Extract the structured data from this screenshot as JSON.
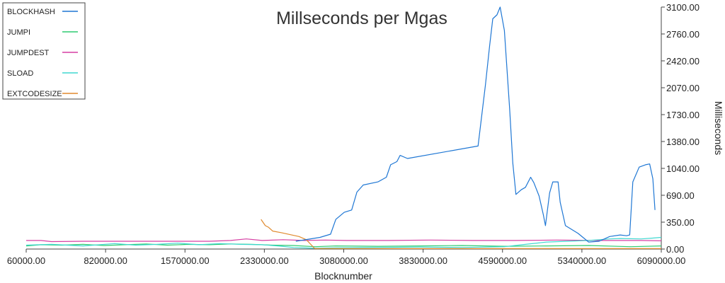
{
  "chart_data": {
    "type": "line",
    "title": "Millseconds per Mgas",
    "xlabel": "Blocknumber",
    "ylabel": "Milliseconds",
    "xlim": [
      60000,
      6090000
    ],
    "ylim": [
      0,
      3100
    ],
    "xticks": [
      "60000.00",
      "820000.00",
      "1570000.00",
      "2330000.00",
      "3080000.00",
      "3830000.00",
      "4590000.00",
      "5340000.00",
      "6090000.00"
    ],
    "yticks": [
      "0.00",
      "350.00",
      "690.00",
      "1040.00",
      "1380.00",
      "1730.00",
      "2070.00",
      "2420.00",
      "2760.00",
      "3100.00"
    ],
    "grid": false,
    "legend_position": "top-left",
    "series": [
      {
        "name": "BLOCKHASH",
        "color": "#1f77d4",
        "points": [
          [
            2620000,
            100
          ],
          [
            2850000,
            150
          ],
          [
            2950000,
            190
          ],
          [
            3000000,
            380
          ],
          [
            3080000,
            470
          ],
          [
            3150000,
            500
          ],
          [
            3200000,
            730
          ],
          [
            3260000,
            820
          ],
          [
            3400000,
            860
          ],
          [
            3480000,
            920
          ],
          [
            3520000,
            1080
          ],
          [
            3580000,
            1120
          ],
          [
            3610000,
            1200
          ],
          [
            3680000,
            1160
          ],
          [
            4350000,
            1320
          ],
          [
            4380000,
            1650
          ],
          [
            4420000,
            2100
          ],
          [
            4460000,
            2600
          ],
          [
            4490000,
            2950
          ],
          [
            4530000,
            3000
          ],
          [
            4560000,
            3100
          ],
          [
            4600000,
            2800
          ],
          [
            4650000,
            1800
          ],
          [
            4680000,
            1100
          ],
          [
            4710000,
            700
          ],
          [
            4760000,
            760
          ],
          [
            4800000,
            790
          ],
          [
            4850000,
            920
          ],
          [
            4880000,
            850
          ],
          [
            4930000,
            680
          ],
          [
            4970000,
            440
          ],
          [
            4990000,
            300
          ],
          [
            5030000,
            720
          ],
          [
            5060000,
            860
          ],
          [
            5110000,
            860
          ],
          [
            5130000,
            600
          ],
          [
            5180000,
            300
          ],
          [
            5300000,
            200
          ],
          [
            5400000,
            90
          ],
          [
            5500000,
            100
          ],
          [
            5600000,
            160
          ],
          [
            5700000,
            180
          ],
          [
            5760000,
            170
          ],
          [
            5790000,
            180
          ],
          [
            5820000,
            860
          ],
          [
            5880000,
            1050
          ],
          [
            5940000,
            1080
          ],
          [
            5980000,
            1090
          ],
          [
            6010000,
            900
          ],
          [
            6030000,
            500
          ]
        ]
      },
      {
        "name": "JUMPI",
        "color": "#2ecc71",
        "points": [
          [
            60000,
            40
          ],
          [
            200000,
            55
          ],
          [
            400000,
            50
          ],
          [
            600000,
            60
          ],
          [
            800000,
            45
          ],
          [
            1000000,
            55
          ],
          [
            1200000,
            65
          ],
          [
            1400000,
            50
          ],
          [
            1600000,
            60
          ],
          [
            1800000,
            55
          ],
          [
            2000000,
            65
          ],
          [
            2200000,
            60
          ],
          [
            2400000,
            50
          ],
          [
            2600000,
            45
          ],
          [
            2800000,
            30
          ],
          [
            3000000,
            40
          ],
          [
            3400000,
            35
          ],
          [
            3800000,
            40
          ],
          [
            4200000,
            45
          ],
          [
            4600000,
            35
          ],
          [
            5000000,
            40
          ],
          [
            5400000,
            45
          ],
          [
            5800000,
            30
          ],
          [
            6090000,
            40
          ]
        ]
      },
      {
        "name": "JUMPDEST",
        "color": "#d63fa3",
        "points": [
          [
            60000,
            110
          ],
          [
            200000,
            110
          ],
          [
            300000,
            95
          ],
          [
            600000,
            100
          ],
          [
            1000000,
            100
          ],
          [
            1400000,
            100
          ],
          [
            1800000,
            100
          ],
          [
            2000000,
            110
          ],
          [
            2150000,
            130
          ],
          [
            2300000,
            110
          ],
          [
            2500000,
            120
          ],
          [
            2700000,
            110
          ],
          [
            2900000,
            115
          ],
          [
            3100000,
            110
          ],
          [
            3500000,
            110
          ],
          [
            3900000,
            115
          ],
          [
            4300000,
            110
          ],
          [
            4700000,
            110
          ],
          [
            5100000,
            115
          ],
          [
            5500000,
            110
          ],
          [
            5900000,
            110
          ],
          [
            6090000,
            105
          ]
        ]
      },
      {
        "name": "SLOAD",
        "color": "#40d8d0",
        "points": [
          [
            60000,
            50
          ],
          [
            300000,
            60
          ],
          [
            600000,
            40
          ],
          [
            900000,
            70
          ],
          [
            1100000,
            50
          ],
          [
            1300000,
            60
          ],
          [
            1500000,
            75
          ],
          [
            1700000,
            55
          ],
          [
            1900000,
            70
          ],
          [
            2100000,
            60
          ],
          [
            2300000,
            55
          ],
          [
            2450000,
            40
          ],
          [
            2600000,
            20
          ],
          [
            2800000,
            10
          ],
          [
            3000000,
            15
          ],
          [
            3400000,
            20
          ],
          [
            3800000,
            25
          ],
          [
            4200000,
            20
          ],
          [
            4600000,
            30
          ],
          [
            4800000,
            60
          ],
          [
            5000000,
            90
          ],
          [
            5200000,
            100
          ],
          [
            5400000,
            110
          ],
          [
            5500000,
            120
          ],
          [
            5600000,
            130
          ],
          [
            5700000,
            135
          ],
          [
            5900000,
            130
          ],
          [
            6000000,
            140
          ],
          [
            6090000,
            150
          ]
        ]
      },
      {
        "name": "EXTCODESIZE",
        "color": "#e08a2e",
        "points": [
          [
            2290000,
            380
          ],
          [
            2330000,
            300
          ],
          [
            2360000,
            280
          ],
          [
            2400000,
            230
          ],
          [
            2480000,
            210
          ],
          [
            2580000,
            180
          ],
          [
            2650000,
            160
          ],
          [
            2720000,
            120
          ],
          [
            2800000,
            5
          ],
          [
            3200000,
            5
          ],
          [
            3800000,
            5
          ],
          [
            4400000,
            5
          ],
          [
            5000000,
            5
          ],
          [
            5600000,
            5
          ],
          [
            6090000,
            5
          ]
        ]
      }
    ]
  }
}
